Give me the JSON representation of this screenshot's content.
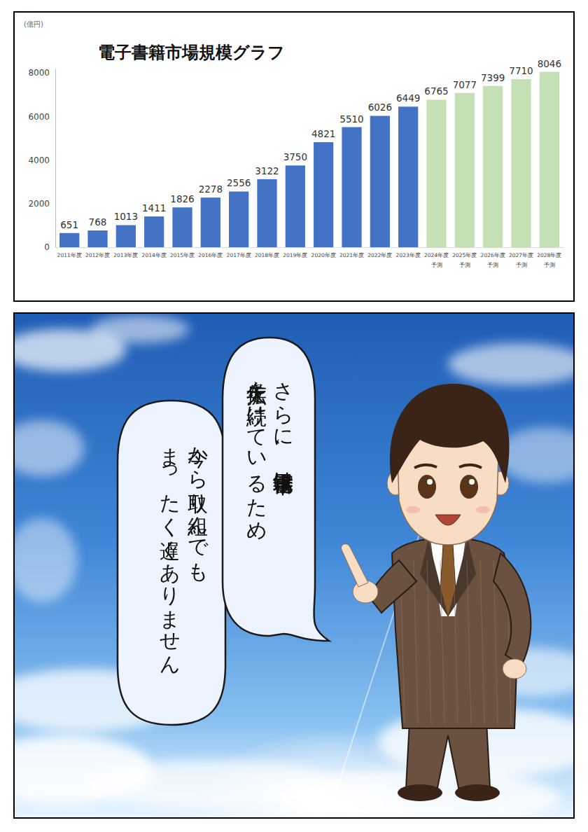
{
  "chart_data": {
    "type": "bar",
    "title": "電子書籍市場規模グラフ",
    "y_label": "(億円)",
    "categories": [
      "2011年度",
      "2012年度",
      "2013年度",
      "2014年度",
      "2015年度",
      "2016年度",
      "2017年度",
      "2018年度",
      "2019年度",
      "2020年度",
      "2021年度",
      "2022年度",
      "2023年度",
      "2024年度\n予測",
      "2025年度\n予測",
      "2026年度\n予測",
      "2027年度\n予測",
      "2028年度\n予測"
    ],
    "values": [
      651,
      768,
      1013,
      1411,
      1826,
      2278,
      2556,
      3122,
      3750,
      4821,
      5510,
      6026,
      6449,
      6765,
      7077,
      7399,
      7710,
      8046
    ],
    "colors": [
      "#4472c4",
      "#4472c4",
      "#4472c4",
      "#4472c4",
      "#4472c4",
      "#4472c4",
      "#4472c4",
      "#4472c4",
      "#4472c4",
      "#4472c4",
      "#4472c4",
      "#4472c4",
      "#4472c4",
      "#c5e0b4",
      "#c5e0b4",
      "#c5e0b4",
      "#c5e0b4",
      "#c5e0b4"
    ],
    "ylim": [
      0,
      8200
    ],
    "yticks": [
      0,
      2000,
      4000,
      6000,
      8000
    ],
    "grid": false,
    "data_labels": true
  },
  "panel": {
    "speech": [
      [
        "さらに、電子書籍市場は",
        "年々拡大を続けているため"
      ],
      [
        "今から取り組んでも",
        "まったく遅くありません"
      ]
    ]
  }
}
